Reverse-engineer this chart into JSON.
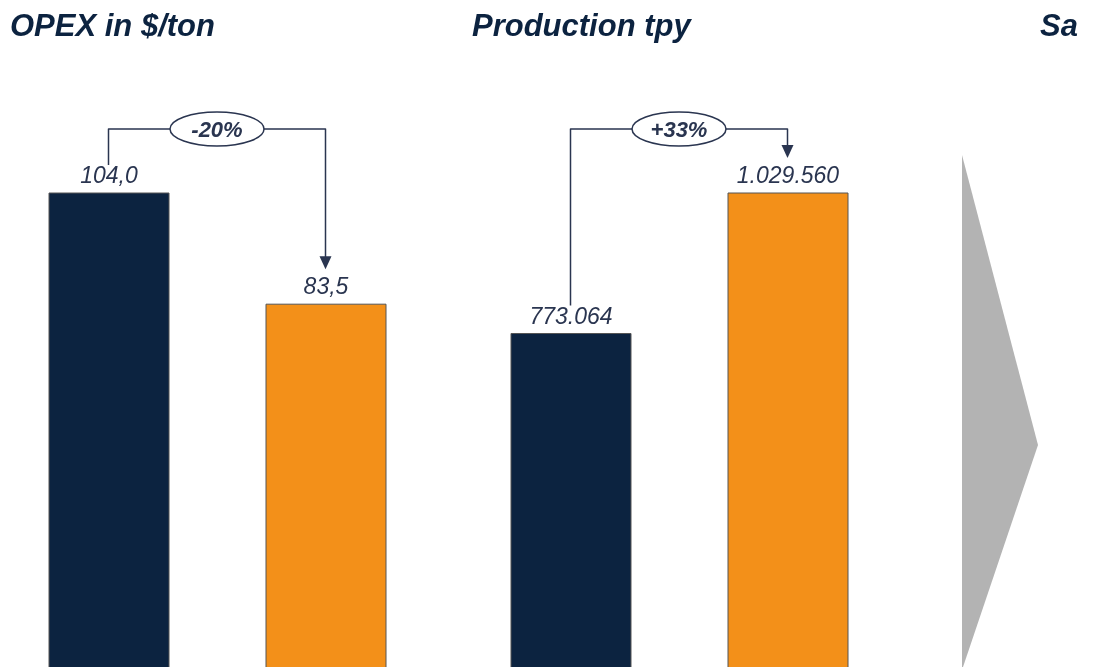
{
  "chart_data": [
    {
      "type": "bar",
      "title": "OPEX in $/ton",
      "categories": [
        null,
        null
      ],
      "values": [
        104.0,
        83.5
      ],
      "colors": [
        "#0c2340",
        "#f39019"
      ],
      "value_labels": [
        "104,0",
        "83,5"
      ],
      "annotations": [
        "-20%"
      ]
    },
    {
      "type": "bar",
      "title": "Production tpy",
      "categories": [
        null,
        null
      ],
      "values": [
        773064,
        1029560
      ],
      "colors": [
        "#0c2340",
        "#f39019"
      ],
      "value_labels": [
        "773.064",
        "1.029.560"
      ],
      "annotations": [
        "+33%"
      ]
    },
    {
      "type": "other",
      "title": "Sa"
    }
  ]
}
